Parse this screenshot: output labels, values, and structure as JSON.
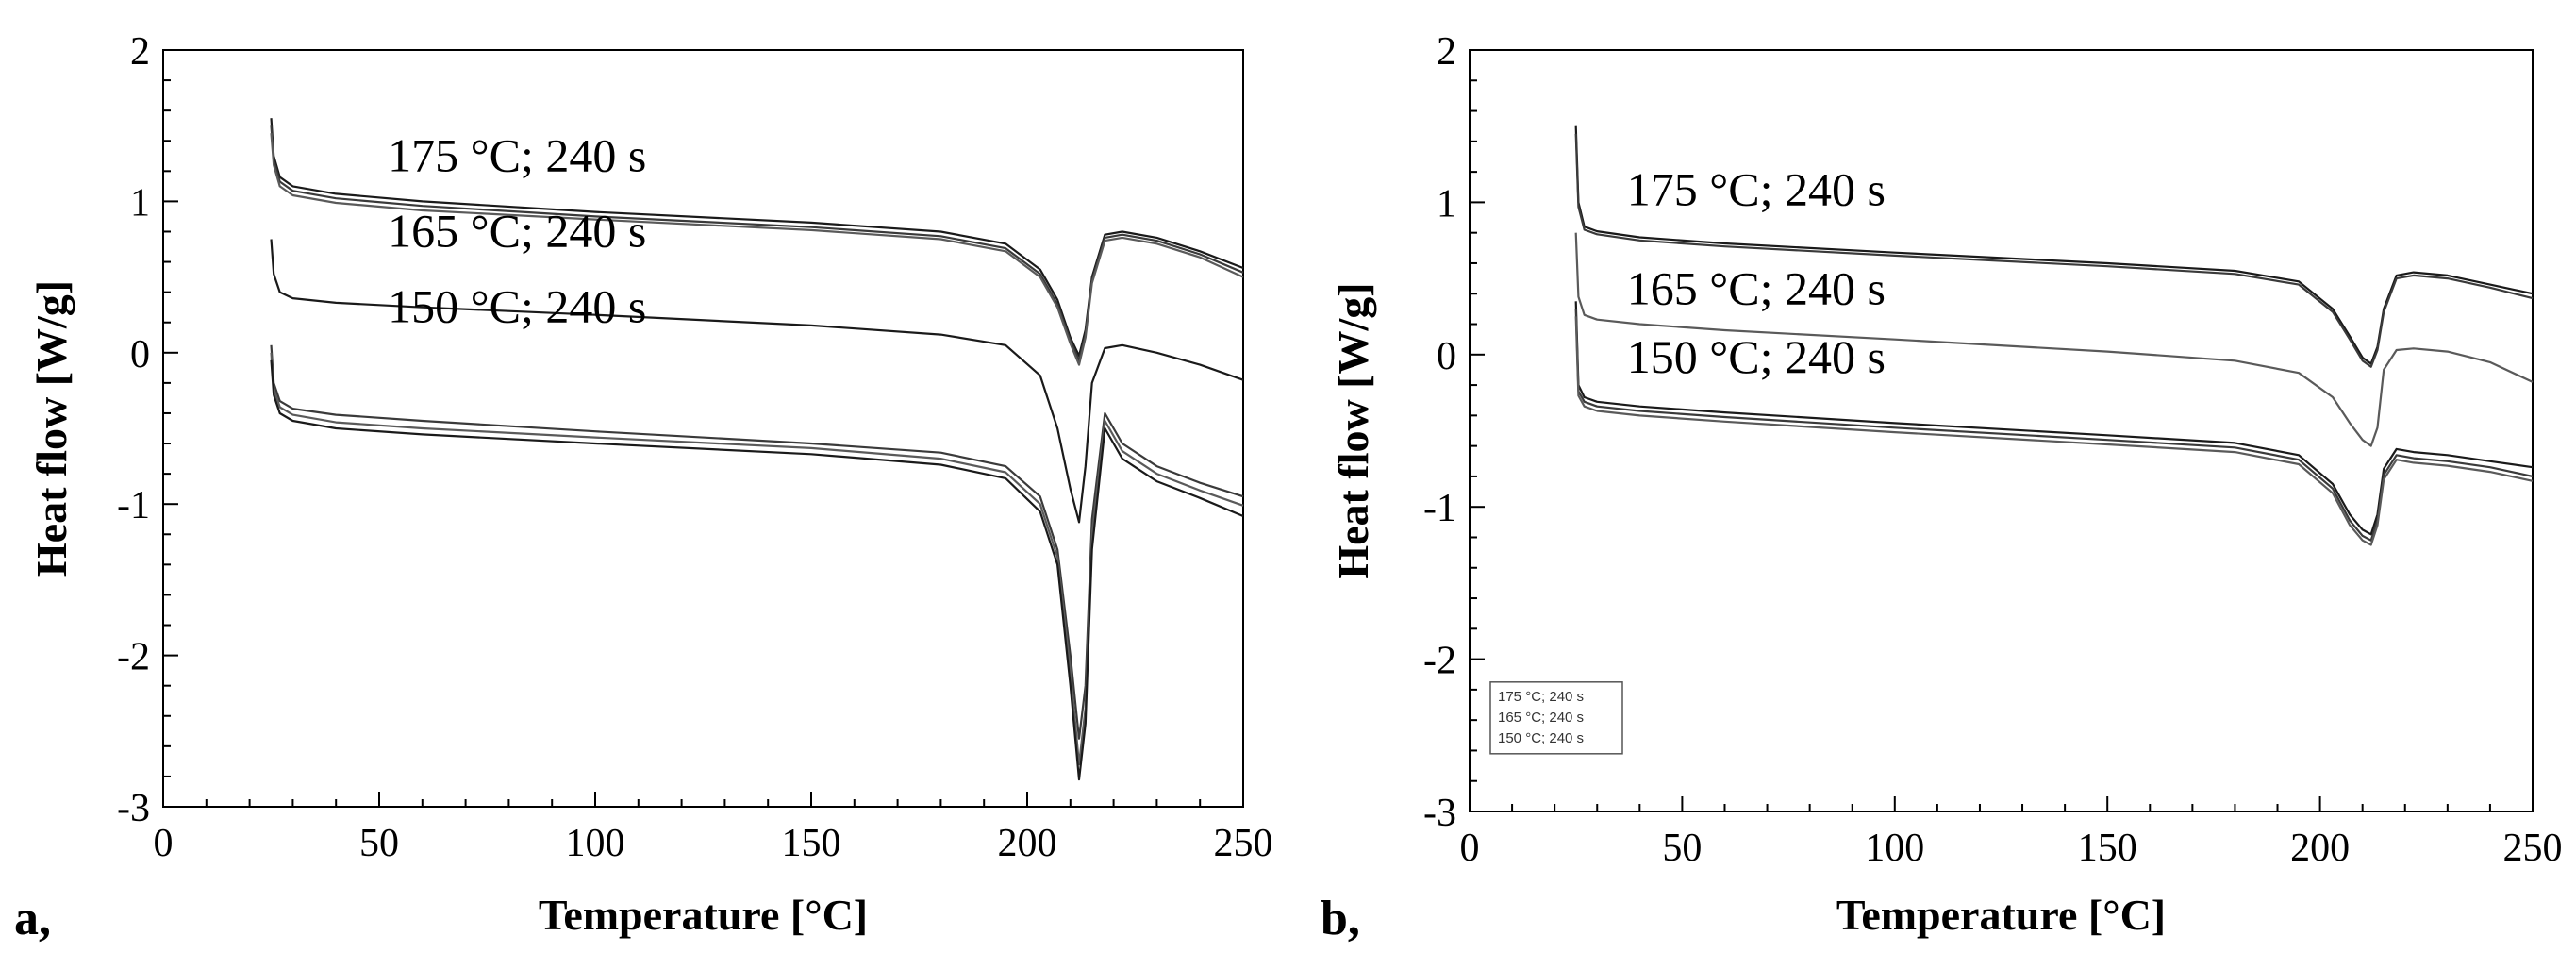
{
  "chart_data": [
    {
      "type": "line",
      "panel_label": "a,",
      "xlabel": "Temperature [°C]",
      "ylabel": "Heat flow [W/g]",
      "xlim": [
        0,
        250
      ],
      "ylim": [
        -3,
        2
      ],
      "xticks": [
        "0",
        "50",
        "100",
        "150",
        "200",
        "250"
      ],
      "yticks": [
        "2",
        "1",
        "0",
        "-1",
        "-2",
        "-3"
      ],
      "grid": false,
      "legend": null,
      "annotations": [
        {
          "text": "175 °C; 240 s",
          "x": 52,
          "y": 1.2
        },
        {
          "text": "165 °C; 240 s",
          "x": 52,
          "y": 0.7
        },
        {
          "text": "150 °C; 240 s",
          "x": 52,
          "y": 0.2
        }
      ],
      "series": [
        {
          "label": "175 °C; 240 s",
          "x": [
            25,
            25.6,
            27,
            30,
            40,
            60,
            100,
            150,
            180,
            195,
            203,
            207,
            210,
            212,
            213.5,
            215,
            218,
            222,
            230,
            240,
            250
          ],
          "y": [
            1.55,
            1.3,
            1.16,
            1.1,
            1.05,
            1.0,
            0.93,
            0.86,
            0.8,
            0.72,
            0.55,
            0.35,
            0.1,
            -0.02,
            0.15,
            0.5,
            0.78,
            0.8,
            0.76,
            0.67,
            0.56
          ]
        },
        {
          "label": "175 °C; 240 s",
          "x": [
            25,
            25.6,
            27,
            30,
            40,
            60,
            100,
            150,
            180,
            195,
            203,
            207,
            210,
            212,
            213.5,
            215,
            218,
            222,
            230,
            240,
            250
          ],
          "y": [
            1.5,
            1.27,
            1.13,
            1.07,
            1.02,
            0.97,
            0.9,
            0.83,
            0.77,
            0.69,
            0.52,
            0.32,
            0.08,
            -0.05,
            0.12,
            0.48,
            0.76,
            0.78,
            0.74,
            0.65,
            0.53
          ]
        },
        {
          "label": "175 °C; 240 s",
          "x": [
            25,
            25.6,
            27,
            30,
            40,
            60,
            100,
            150,
            180,
            195,
            203,
            207,
            210,
            212,
            213.5,
            215,
            218,
            222,
            230,
            240,
            250
          ],
          "y": [
            1.45,
            1.24,
            1.1,
            1.04,
            0.99,
            0.94,
            0.88,
            0.81,
            0.75,
            0.67,
            0.5,
            0.3,
            0.06,
            -0.08,
            0.1,
            0.46,
            0.74,
            0.76,
            0.72,
            0.63,
            0.5
          ]
        },
        {
          "label": "165 °C; 240 s",
          "x": [
            25,
            25.6,
            27,
            30,
            40,
            60,
            100,
            150,
            180,
            195,
            203,
            207,
            210,
            212,
            213.5,
            215,
            218,
            222,
            230,
            240,
            250
          ],
          "y": [
            0.75,
            0.52,
            0.4,
            0.36,
            0.33,
            0.3,
            0.25,
            0.18,
            0.12,
            0.05,
            -0.15,
            -0.5,
            -0.9,
            -1.12,
            -0.75,
            -0.2,
            0.03,
            0.05,
            0.0,
            -0.08,
            -0.18
          ]
        },
        {
          "label": "150 °C; 240 s",
          "x": [
            25,
            25.6,
            27,
            30,
            40,
            60,
            100,
            150,
            180,
            195,
            203,
            207,
            210,
            212,
            213.5,
            215,
            218,
            222,
            230,
            240,
            250
          ],
          "y": [
            0.05,
            -0.2,
            -0.32,
            -0.37,
            -0.41,
            -0.45,
            -0.52,
            -0.6,
            -0.66,
            -0.75,
            -0.95,
            -1.3,
            -2.0,
            -2.55,
            -2.2,
            -1.1,
            -0.4,
            -0.6,
            -0.75,
            -0.86,
            -0.95
          ]
        },
        {
          "label": "150 °C; 240 s",
          "x": [
            25,
            25.6,
            27,
            30,
            40,
            60,
            100,
            150,
            180,
            195,
            203,
            207,
            210,
            212,
            213.5,
            215,
            218,
            222,
            230,
            240,
            250
          ],
          "y": [
            0.0,
            -0.24,
            -0.36,
            -0.41,
            -0.46,
            -0.5,
            -0.56,
            -0.63,
            -0.7,
            -0.79,
            -1.0,
            -1.35,
            -2.1,
            -2.72,
            -2.35,
            -1.2,
            -0.45,
            -0.65,
            -0.8,
            -0.91,
            -1.01
          ]
        },
        {
          "label": "150 °C; 240 s",
          "x": [
            25,
            25.6,
            27,
            30,
            40,
            60,
            100,
            150,
            180,
            195,
            203,
            207,
            210,
            212,
            213.5,
            215,
            218,
            222,
            230,
            240,
            250
          ],
          "y": [
            -0.05,
            -0.28,
            -0.4,
            -0.45,
            -0.5,
            -0.54,
            -0.6,
            -0.67,
            -0.74,
            -0.83,
            -1.05,
            -1.4,
            -2.2,
            -2.82,
            -2.45,
            -1.3,
            -0.5,
            -0.7,
            -0.85,
            -0.96,
            -1.08
          ]
        }
      ]
    },
    {
      "type": "line",
      "panel_label": "b,",
      "xlabel": "Temperature [°C]",
      "ylabel": "Heat flow [W/g]",
      "xlim": [
        0,
        250
      ],
      "ylim": [
        -3,
        2
      ],
      "xticks": [
        "0",
        "50",
        "100",
        "150",
        "200",
        "250"
      ],
      "yticks": [
        "2",
        "1",
        "0",
        "-1",
        "-2",
        "-3"
      ],
      "grid": false,
      "legend": {
        "position": "bottom-left",
        "entries": [
          "175 °C; 240 s",
          "165 °C; 240 s",
          "150 °C; 240 s"
        ]
      },
      "annotations": [
        {
          "text": "175 °C; 240 s",
          "x": 37,
          "y": 0.98
        },
        {
          "text": "165 °C; 240 s",
          "x": 37,
          "y": 0.33
        },
        {
          "text": "150 °C; 240 s",
          "x": 37,
          "y": -0.12
        }
      ],
      "series": [
        {
          "label": "175 °C; 240 s",
          "x": [
            25,
            25.6,
            27,
            30,
            40,
            60,
            100,
            150,
            180,
            195,
            203,
            207,
            210,
            212,
            213.5,
            215,
            218,
            222,
            230,
            240,
            250
          ],
          "y": [
            1.5,
            1.0,
            0.84,
            0.81,
            0.77,
            0.73,
            0.67,
            0.6,
            0.55,
            0.48,
            0.3,
            0.12,
            -0.02,
            -0.06,
            0.05,
            0.3,
            0.52,
            0.54,
            0.52,
            0.46,
            0.4
          ]
        },
        {
          "label": "175 °C; 240 s",
          "x": [
            25,
            25.6,
            27,
            30,
            40,
            60,
            100,
            150,
            180,
            195,
            203,
            207,
            210,
            212,
            213.5,
            215,
            218,
            222,
            230,
            240,
            250
          ],
          "y": [
            1.45,
            0.97,
            0.82,
            0.79,
            0.75,
            0.71,
            0.65,
            0.58,
            0.53,
            0.46,
            0.28,
            0.1,
            -0.04,
            -0.08,
            0.03,
            0.28,
            0.5,
            0.52,
            0.5,
            0.44,
            0.37
          ]
        },
        {
          "label": "165 °C; 240 s",
          "x": [
            25,
            25.6,
            27,
            30,
            40,
            60,
            100,
            150,
            180,
            195,
            203,
            207,
            210,
            212,
            213.5,
            215,
            218,
            222,
            230,
            240,
            250
          ],
          "y": [
            0.8,
            0.38,
            0.26,
            0.23,
            0.2,
            0.16,
            0.1,
            0.02,
            -0.04,
            -0.12,
            -0.28,
            -0.45,
            -0.56,
            -0.6,
            -0.48,
            -0.1,
            0.03,
            0.04,
            0.02,
            -0.05,
            -0.18
          ]
        },
        {
          "label": "150 °C; 240 s",
          "x": [
            25,
            25.6,
            27,
            30,
            40,
            60,
            100,
            150,
            180,
            195,
            203,
            207,
            210,
            212,
            213.5,
            215,
            218,
            222,
            230,
            240,
            250
          ],
          "y": [
            0.35,
            -0.2,
            -0.28,
            -0.31,
            -0.34,
            -0.38,
            -0.45,
            -0.53,
            -0.58,
            -0.66,
            -0.85,
            -1.05,
            -1.15,
            -1.18,
            -1.05,
            -0.75,
            -0.62,
            -0.64,
            -0.66,
            -0.7,
            -0.74
          ]
        },
        {
          "label": "150 °C; 240 s",
          "x": [
            25,
            25.6,
            27,
            30,
            40,
            60,
            100,
            150,
            180,
            195,
            203,
            207,
            210,
            212,
            213.5,
            215,
            218,
            222,
            230,
            240,
            250
          ],
          "y": [
            0.3,
            -0.24,
            -0.31,
            -0.34,
            -0.37,
            -0.41,
            -0.48,
            -0.56,
            -0.61,
            -0.69,
            -0.88,
            -1.09,
            -1.19,
            -1.22,
            -1.09,
            -0.79,
            -0.66,
            -0.68,
            -0.7,
            -0.74,
            -0.8
          ]
        },
        {
          "label": "150 °C; 240 s",
          "x": [
            25,
            25.6,
            27,
            30,
            40,
            60,
            100,
            150,
            180,
            195,
            203,
            207,
            210,
            212,
            213.5,
            215,
            218,
            222,
            230,
            240,
            250
          ],
          "y": [
            0.25,
            -0.27,
            -0.34,
            -0.37,
            -0.4,
            -0.44,
            -0.51,
            -0.59,
            -0.64,
            -0.72,
            -0.91,
            -1.12,
            -1.22,
            -1.25,
            -1.12,
            -0.82,
            -0.69,
            -0.71,
            -0.73,
            -0.77,
            -0.83
          ]
        }
      ]
    }
  ]
}
